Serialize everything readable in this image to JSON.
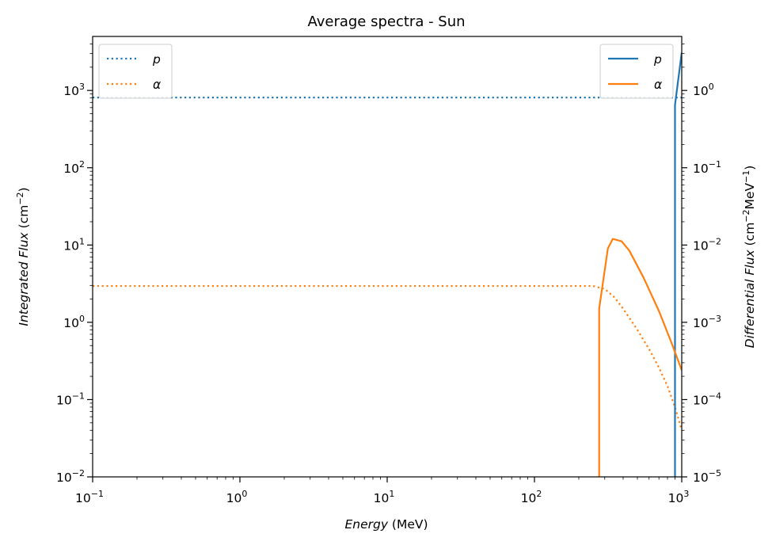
{
  "chart_data": {
    "type": "line",
    "title": "Average spectra - Sun",
    "xlabel": {
      "italic": "Energy",
      "rest": " (MeV)"
    },
    "ylabel_left": {
      "italic": "Integrated Flux",
      "rest": " (cm",
      "sup": "−2",
      "end": ")"
    },
    "ylabel_right": {
      "italic": "Differential Flux",
      "rest": " (cm",
      "sup": "−2",
      "mid": "MeV",
      "sup2": "−1",
      "end": ")"
    },
    "x_scale": "log",
    "xlim": [
      0.1,
      1000
    ],
    "ylim_left": [
      0.01,
      5000
    ],
    "ylim_right": [
      1e-05,
      5
    ],
    "x_ticks": [
      {
        "base": "10",
        "exp": "−1",
        "value": 0.1
      },
      {
        "base": "10",
        "exp": "0",
        "value": 1
      },
      {
        "base": "10",
        "exp": "1",
        "value": 10
      },
      {
        "base": "10",
        "exp": "2",
        "value": 100
      },
      {
        "base": "10",
        "exp": "3",
        "value": 1000
      }
    ],
    "y_left_ticks": [
      {
        "base": "10",
        "exp": "−2",
        "value": 0.01
      },
      {
        "base": "10",
        "exp": "−1",
        "value": 0.1
      },
      {
        "base": "10",
        "exp": "0",
        "value": 1
      },
      {
        "base": "10",
        "exp": "1",
        "value": 10
      },
      {
        "base": "10",
        "exp": "2",
        "value": 100
      },
      {
        "base": "10",
        "exp": "3",
        "value": 1000
      }
    ],
    "y_right_ticks": [
      {
        "base": "10",
        "exp": "−5",
        "value": 1e-05
      },
      {
        "base": "10",
        "exp": "−4",
        "value": 0.0001
      },
      {
        "base": "10",
        "exp": "−3",
        "value": 0.001
      },
      {
        "base": "10",
        "exp": "−2",
        "value": 0.01
      },
      {
        "base": "10",
        "exp": "−1",
        "value": 0.1
      },
      {
        "base": "10",
        "exp": "0",
        "value": 1
      }
    ],
    "grid": false,
    "legend_left": {
      "placement": "top-left",
      "entries": [
        {
          "label": "p",
          "color": "#1f77b4",
          "style": "dotted"
        },
        {
          "label": "α",
          "color": "#ff7f0e",
          "style": "dotted"
        }
      ]
    },
    "legend_right": {
      "placement": "top-right",
      "entries": [
        {
          "label": "p",
          "color": "#1f77b4",
          "style": "solid"
        },
        {
          "label": "α",
          "color": "#ff7f0e",
          "style": "solid"
        }
      ]
    },
    "series": [
      {
        "name": "p",
        "axis": "left",
        "style": "dotted",
        "color": "#1f77b4",
        "x": [
          0.1,
          1,
          10,
          100,
          900,
          950,
          1000
        ],
        "y": [
          810,
          810,
          810,
          810,
          810,
          810,
          810
        ]
      },
      {
        "name": "α",
        "axis": "left",
        "style": "dotted",
        "color": "#ff7f0e",
        "x": [
          0.1,
          1,
          10,
          100,
          250,
          300,
          350,
          400,
          500,
          600,
          700,
          800,
          900,
          1000
        ],
        "y": [
          2.95,
          2.95,
          2.95,
          2.95,
          2.95,
          2.7,
          2.1,
          1.5,
          0.8,
          0.45,
          0.26,
          0.15,
          0.08,
          0.04
        ]
      },
      {
        "name": "p",
        "axis": "right",
        "style": "solid",
        "color": "#1f77b4",
        "x": [
          900,
          900,
          1000
        ],
        "y": [
          1e-05,
          0.65,
          3.1
        ]
      },
      {
        "name": "α",
        "axis": "right",
        "style": "solid",
        "color": "#ff7f0e",
        "x": [
          275,
          275,
          315,
          340,
          390,
          440,
          550,
          700,
          850,
          1000
        ],
        "y": [
          1e-05,
          0.0015,
          0.009,
          0.012,
          0.0112,
          0.0085,
          0.0038,
          0.0014,
          0.00055,
          0.00024
        ]
      }
    ]
  }
}
